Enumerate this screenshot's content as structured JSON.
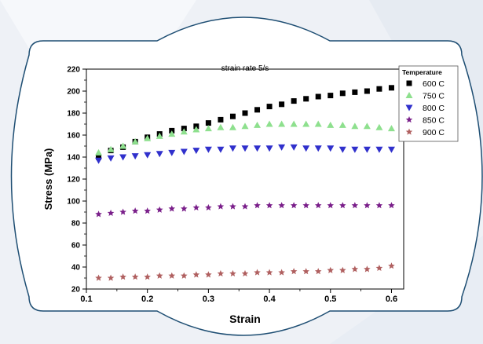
{
  "chart_data": {
    "type": "scatter",
    "title": "strain rate 5/s",
    "xlabel": "Strain",
    "ylabel": "Stress (MPa)",
    "xlim": [
      0.1,
      0.62
    ],
    "ylim": [
      20,
      220
    ],
    "xticks": [
      "0.1",
      "0.2",
      "0.3",
      "0.4",
      "0.5",
      "0.6"
    ],
    "yticks": [
      "20",
      "40",
      "60",
      "80",
      "100",
      "120",
      "140",
      "160",
      "180",
      "200",
      "220"
    ],
    "legend_title": "Temperature",
    "legend_position": "top-right",
    "x": [
      0.12,
      0.14,
      0.16,
      0.18,
      0.2,
      0.22,
      0.24,
      0.26,
      0.28,
      0.3,
      0.32,
      0.34,
      0.36,
      0.38,
      0.4,
      0.42,
      0.44,
      0.46,
      0.48,
      0.5,
      0.52,
      0.54,
      0.56,
      0.58,
      0.6
    ],
    "series": [
      {
        "name": "600 C",
        "color": "#000000",
        "marker": "square",
        "values": [
          140,
          146,
          149,
          154,
          158,
          161,
          164,
          166,
          168,
          171,
          174,
          177,
          180,
          183,
          186,
          188,
          191,
          193,
          195,
          196,
          198,
          199,
          200,
          202,
          203
        ]
      },
      {
        "name": "750 C",
        "color": "#8ee08e",
        "marker": "triangle-up",
        "values": [
          144,
          147,
          150,
          154,
          157,
          159,
          161,
          163,
          165,
          166,
          167,
          167,
          168,
          169,
          170,
          170,
          170,
          170,
          170,
          169,
          169,
          168,
          168,
          167,
          166
        ]
      },
      {
        "name": "800 C",
        "color": "#3030cc",
        "marker": "triangle-down",
        "values": [
          137,
          139,
          140,
          141,
          142,
          143,
          144,
          145,
          146,
          147,
          147,
          148,
          148,
          148,
          148,
          149,
          149,
          148,
          148,
          148,
          147,
          147,
          147,
          147,
          147
        ]
      },
      {
        "name": "850 C",
        "color": "#7a1f8a",
        "marker": "star",
        "values": [
          88,
          89,
          90,
          91,
          91,
          92,
          93,
          93,
          94,
          94,
          95,
          95,
          95,
          96,
          96,
          96,
          96,
          96,
          96,
          96,
          96,
          96,
          96,
          96,
          96
        ]
      },
      {
        "name": "900 C",
        "color": "#b06060",
        "marker": "star",
        "values": [
          30,
          30,
          31,
          31,
          31,
          32,
          32,
          32,
          33,
          33,
          34,
          34,
          34,
          35,
          35,
          35,
          36,
          36,
          36,
          37,
          37,
          38,
          38,
          39,
          41
        ]
      }
    ]
  }
}
